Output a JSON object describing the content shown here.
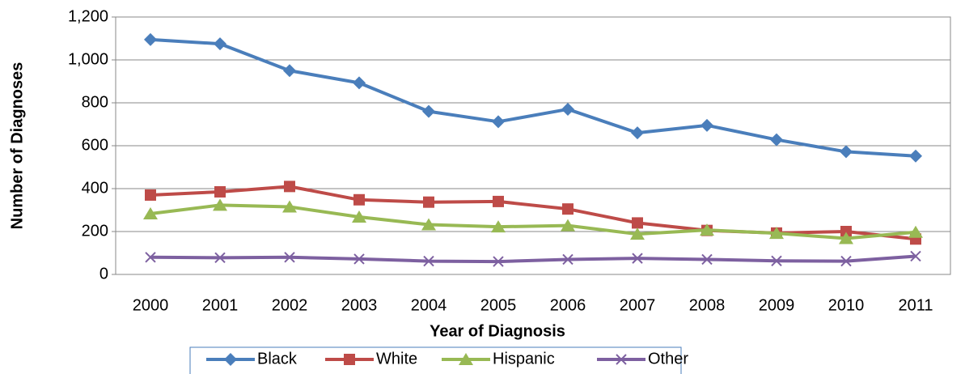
{
  "chart_data": {
    "type": "line",
    "x_label": "Year of Diagnosis",
    "y_label": "Number of Diagnoses",
    "categories": [
      "2000",
      "2001",
      "2002",
      "2003",
      "2004",
      "2005",
      "2006",
      "2007",
      "2008",
      "2009",
      "2010",
      "2011"
    ],
    "series": [
      {
        "name": "Black",
        "color": "#4a7ebb",
        "marker": "diamond",
        "values": [
          1095,
          1075,
          950,
          893,
          760,
          712,
          770,
          660,
          695,
          628,
          572,
          552
        ]
      },
      {
        "name": "White",
        "color": "#be4b48",
        "marker": "square",
        "values": [
          370,
          385,
          410,
          348,
          337,
          340,
          305,
          240,
          205,
          193,
          200,
          165
        ]
      },
      {
        "name": "Hispanic",
        "color": "#98b954",
        "marker": "triangle",
        "values": [
          283,
          323,
          315,
          268,
          232,
          222,
          228,
          188,
          207,
          192,
          168,
          197
        ]
      },
      {
        "name": "Other",
        "color": "#7d60a0",
        "marker": "x",
        "values": [
          80,
          78,
          80,
          72,
          62,
          60,
          70,
          75,
          70,
          63,
          62,
          85
        ]
      }
    ],
    "ylim": [
      0,
      1200
    ],
    "yticks": [
      0,
      200,
      400,
      600,
      800,
      {
        "value": 1000,
        "label": "1,000"
      },
      {
        "value": 1200,
        "label": "1,200"
      }
    ],
    "grid": true,
    "legend": "bottom"
  }
}
